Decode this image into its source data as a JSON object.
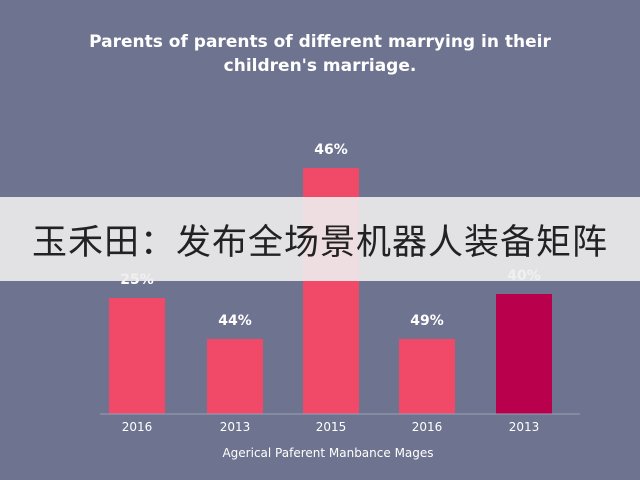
{
  "chart_data": {
    "type": "bar",
    "title_lines": [
      "Parents of parents of different marrying in their",
      "children's marriage."
    ],
    "categories": [
      "2016",
      "2013",
      "2015",
      "2016",
      "2013"
    ],
    "values": [
      25,
      44,
      46,
      49,
      40
    ],
    "value_labels": [
      "25%",
      "44%",
      "46%",
      "49%",
      "40%"
    ],
    "xlabel": "Agerical Paferent Manbance Mages",
    "ylabel": "",
    "grid": false,
    "legend": "none",
    "colors": [
      "#f04a68",
      "#f04a68",
      "#f04a68",
      "#f04a68",
      "#b8004c"
    ]
  },
  "banner_text": "玉禾田：发布全场景机器人装备矩阵",
  "colors": {
    "background": "#6e7390",
    "bar": "#f04a68",
    "bar_highlight": "#b8004c",
    "banner_bg": "#eeeeee"
  }
}
